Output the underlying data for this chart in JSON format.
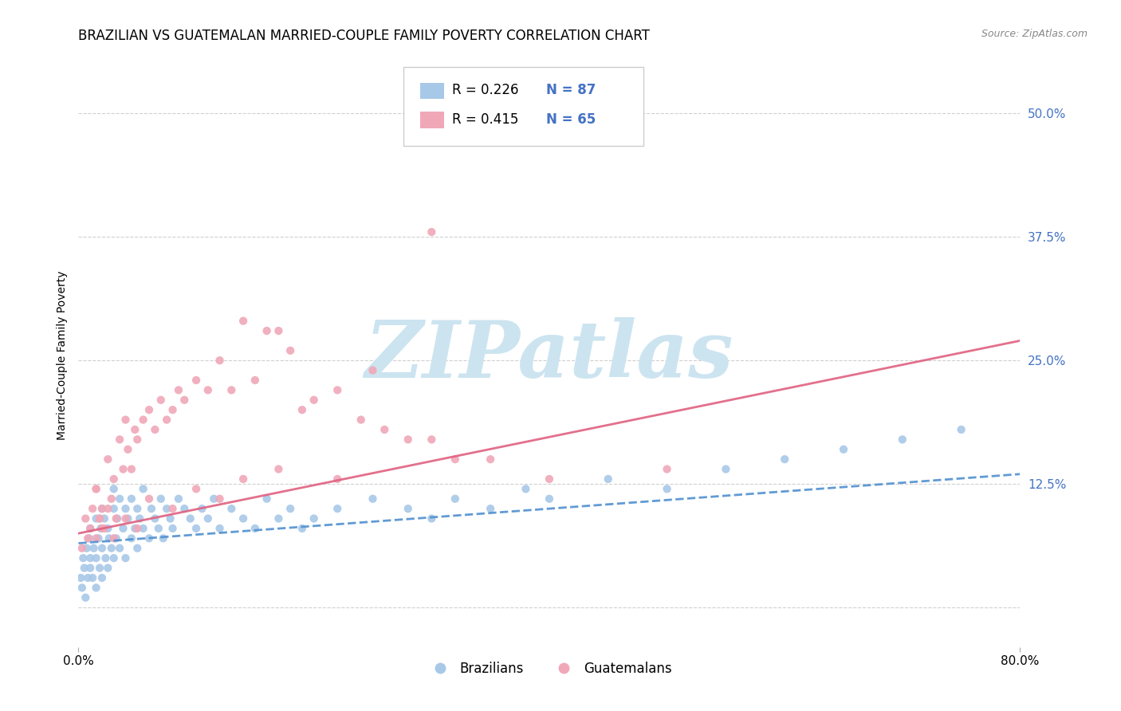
{
  "title": "BRAZILIAN VS GUATEMALAN MARRIED-COUPLE FAMILY POVERTY CORRELATION CHART",
  "source": "Source: ZipAtlas.com",
  "ylabel": "Married-Couple Family Poverty",
  "xlim": [
    0.0,
    0.8
  ],
  "ylim": [
    -0.04,
    0.55
  ],
  "ytick_positions": [
    0.0,
    0.125,
    0.25,
    0.375,
    0.5
  ],
  "ytick_labels_right": [
    "",
    "12.5%",
    "25.0%",
    "37.5%",
    "50.0%"
  ],
  "grid_color": "#d0d0d0",
  "background_color": "#ffffff",
  "watermark_text": "ZIPatlas",
  "watermark_color": "#cce4f0",
  "legend_r1": "R = 0.226",
  "legend_n1": "N = 87",
  "legend_r2": "R = 0.415",
  "legend_n2": "N = 65",
  "blue_scatter_color": "#a8c8e8",
  "pink_scatter_color": "#f0a8b8",
  "blue_line_color": "#5090d0",
  "pink_line_color": "#e06080",
  "blue_label_color": "#4472c4",
  "title_fontsize": 12,
  "axis_label_fontsize": 10,
  "tick_fontsize": 11,
  "blue_scatter_x": [
    0.002,
    0.003,
    0.004,
    0.005,
    0.006,
    0.007,
    0.008,
    0.009,
    0.01,
    0.01,
    0.01,
    0.012,
    0.013,
    0.015,
    0.015,
    0.015,
    0.017,
    0.018,
    0.019,
    0.02,
    0.02,
    0.02,
    0.022,
    0.023,
    0.025,
    0.025,
    0.026,
    0.028,
    0.03,
    0.03,
    0.03,
    0.032,
    0.033,
    0.035,
    0.035,
    0.038,
    0.04,
    0.04,
    0.042,
    0.045,
    0.045,
    0.048,
    0.05,
    0.05,
    0.052,
    0.055,
    0.055,
    0.06,
    0.062,
    0.065,
    0.068,
    0.07,
    0.072,
    0.075,
    0.078,
    0.08,
    0.085,
    0.09,
    0.095,
    0.1,
    0.105,
    0.11,
    0.115,
    0.12,
    0.13,
    0.14,
    0.15,
    0.16,
    0.17,
    0.18,
    0.19,
    0.2,
    0.22,
    0.25,
    0.28,
    0.3,
    0.32,
    0.35,
    0.38,
    0.4,
    0.45,
    0.5,
    0.55,
    0.6,
    0.65,
    0.7,
    0.75
  ],
  "blue_scatter_y": [
    0.03,
    0.02,
    0.05,
    0.04,
    0.01,
    0.06,
    0.03,
    0.07,
    0.04,
    0.08,
    0.05,
    0.03,
    0.06,
    0.09,
    0.05,
    0.02,
    0.07,
    0.04,
    0.08,
    0.06,
    0.1,
    0.03,
    0.09,
    0.05,
    0.08,
    0.04,
    0.07,
    0.06,
    0.1,
    0.05,
    0.12,
    0.07,
    0.09,
    0.06,
    0.11,
    0.08,
    0.1,
    0.05,
    0.09,
    0.11,
    0.07,
    0.08,
    0.1,
    0.06,
    0.09,
    0.08,
    0.12,
    0.07,
    0.1,
    0.09,
    0.08,
    0.11,
    0.07,
    0.1,
    0.09,
    0.08,
    0.11,
    0.1,
    0.09,
    0.08,
    0.1,
    0.09,
    0.11,
    0.08,
    0.1,
    0.09,
    0.08,
    0.11,
    0.09,
    0.1,
    0.08,
    0.09,
    0.1,
    0.11,
    0.1,
    0.09,
    0.11,
    0.1,
    0.12,
    0.11,
    0.13,
    0.12,
    0.14,
    0.15,
    0.16,
    0.17,
    0.18
  ],
  "pink_scatter_x": [
    0.003,
    0.006,
    0.008,
    0.01,
    0.012,
    0.015,
    0.015,
    0.018,
    0.02,
    0.022,
    0.025,
    0.028,
    0.03,
    0.032,
    0.035,
    0.038,
    0.04,
    0.042,
    0.045,
    0.048,
    0.05,
    0.055,
    0.06,
    0.065,
    0.07,
    0.075,
    0.08,
    0.085,
    0.09,
    0.1,
    0.11,
    0.12,
    0.13,
    0.14,
    0.15,
    0.16,
    0.17,
    0.18,
    0.19,
    0.2,
    0.22,
    0.24,
    0.25,
    0.26,
    0.28,
    0.3,
    0.32,
    0.35,
    0.17,
    0.14,
    0.12,
    0.1,
    0.08,
    0.06,
    0.05,
    0.04,
    0.03,
    0.025,
    0.02,
    0.018,
    0.015,
    0.4,
    0.5,
    0.3,
    0.22
  ],
  "pink_scatter_y": [
    0.06,
    0.09,
    0.07,
    0.08,
    0.1,
    0.12,
    0.07,
    0.09,
    0.1,
    0.08,
    0.15,
    0.11,
    0.13,
    0.09,
    0.17,
    0.14,
    0.19,
    0.16,
    0.14,
    0.18,
    0.17,
    0.19,
    0.2,
    0.18,
    0.21,
    0.19,
    0.2,
    0.22,
    0.21,
    0.23,
    0.22,
    0.25,
    0.22,
    0.29,
    0.23,
    0.28,
    0.28,
    0.26,
    0.2,
    0.21,
    0.22,
    0.19,
    0.24,
    0.18,
    0.17,
    0.17,
    0.15,
    0.15,
    0.14,
    0.13,
    0.11,
    0.12,
    0.1,
    0.11,
    0.08,
    0.09,
    0.07,
    0.1,
    0.08,
    0.09,
    0.12,
    0.13,
    0.14,
    0.38,
    0.13
  ],
  "blue_line_x0": 0.0,
  "blue_line_x1": 0.8,
  "blue_line_y0": 0.065,
  "blue_line_y1": 0.135,
  "pink_line_x0": 0.0,
  "pink_line_x1": 0.8,
  "pink_line_y0": 0.075,
  "pink_line_y1": 0.27
}
